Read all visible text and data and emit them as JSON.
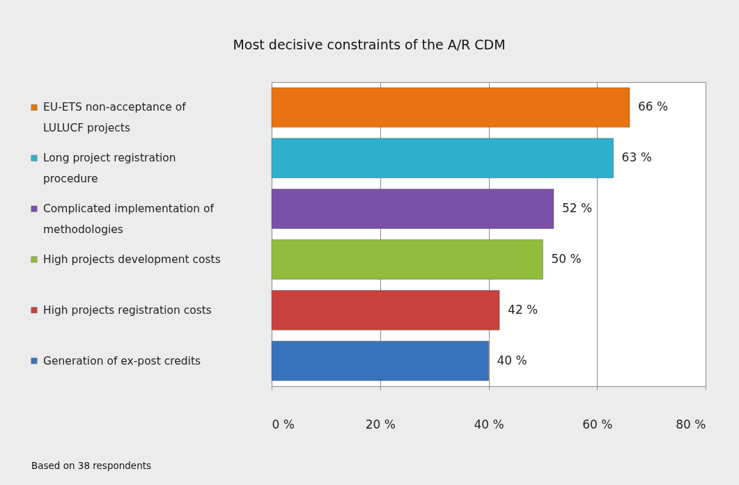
{
  "chart_data": {
    "type": "bar",
    "orientation": "horizontal",
    "title": "Most decisive constraints of the A/R CDM",
    "categories": [
      "EU-ETS non-acceptance of\nLULUCF projects",
      "Long project registration\nprocedure",
      "Complicated implementation of\nmethodologies",
      "High projects development costs",
      "High projects registration costs",
      "Generation of ex-post credits"
    ],
    "values": [
      66,
      63,
      52,
      50,
      42,
      40
    ],
    "value_labels": [
      "66 %",
      "63 %",
      "52 %",
      "50 %",
      "42 %",
      "40 %"
    ],
    "colors": [
      "#e8730f",
      "#2fb0cc",
      "#7a4fa8",
      "#92bd3c",
      "#c8413c",
      "#3872bd"
    ],
    "xlim": [
      0,
      80
    ],
    "xticks": [
      {
        "value": 0,
        "label": "0 %"
      },
      {
        "value": 20,
        "label": "20 %"
      },
      {
        "value": 40,
        "label": "40 %"
      },
      {
        "value": 60,
        "label": "60 %"
      },
      {
        "value": 80,
        "label": "80 %"
      }
    ],
    "grid": "x",
    "annotations": [
      "Based on 38 respondents"
    ]
  }
}
